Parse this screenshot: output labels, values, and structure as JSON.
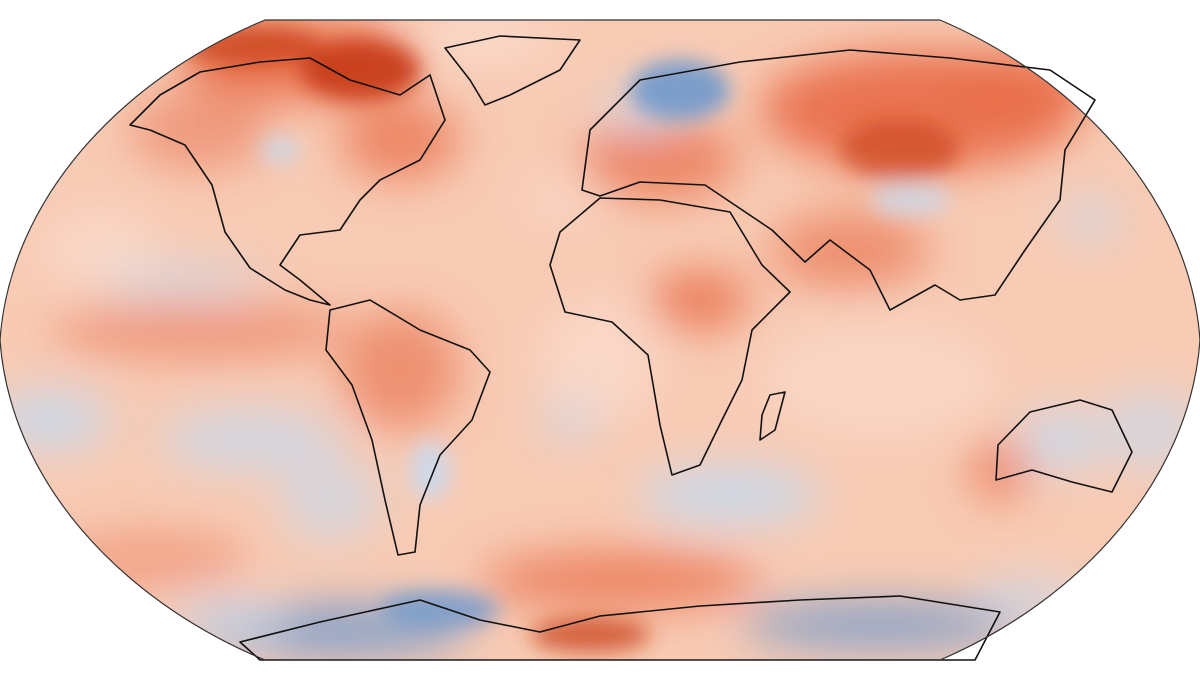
{
  "map": {
    "projection": "robinson",
    "variable": "temperature-anomaly",
    "colors": {
      "base": "#f8cbb4",
      "warm": "#e86a45",
      "hot": "#c63a16",
      "mild": "#fbe0d2",
      "cool": "#c9daee",
      "cold": "#6f99cc",
      "coastline": "#111111",
      "frame": "#333333"
    }
  }
}
